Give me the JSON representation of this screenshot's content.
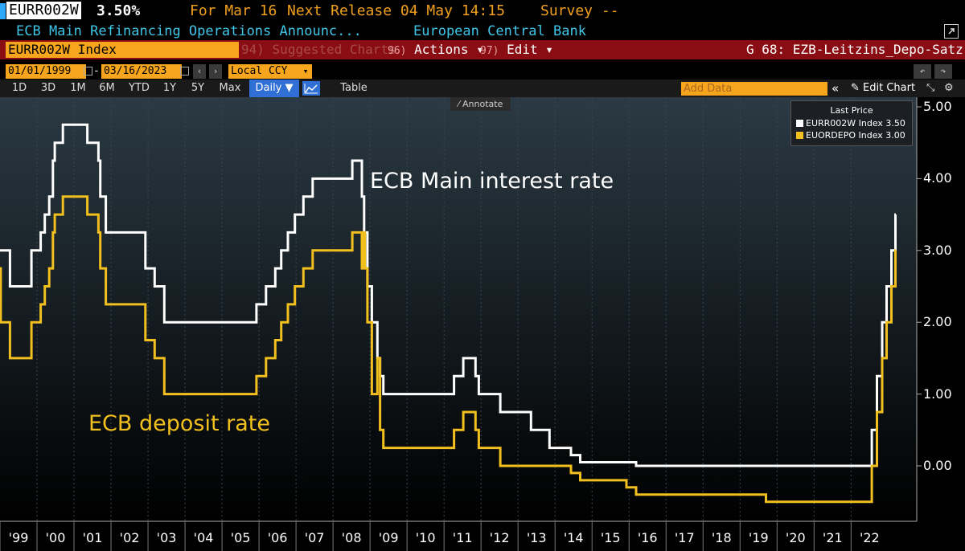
{
  "header": {
    "ticker": "EURR002W",
    "last_value": "3.50%",
    "for_label": "For Mar 16",
    "next_release": "Next Release 04 May 14:15",
    "survey": "Survey --",
    "description": "ECB Main Refinancing Operations Announc...",
    "source": "European Central Bank"
  },
  "toolbar": {
    "security": "EURR002W Index",
    "suggested": {
      "num": "94)",
      "label": "Suggested Charts"
    },
    "actions": {
      "num": "96)",
      "label": "Actions ▾"
    },
    "edit": {
      "num": "97)",
      "label": "Edit ▾"
    },
    "page_title": "G 68: EZB-Leitzins_Depo-Satz"
  },
  "range": {
    "start": "01/01/1999",
    "dash": "-",
    "end": "03/16/2023",
    "currency": "Local CCY"
  },
  "tabs": [
    "1D",
    "3D",
    "1M",
    "6M",
    "YTD",
    "1Y",
    "5Y",
    "Max"
  ],
  "period": "Daily ▼",
  "table_label": "Table",
  "add_data_placeholder": "Add Data",
  "edit_chart": "Edit Chart",
  "annotate": "Annotate",
  "colors": {
    "main": "#ffffff",
    "deposit": "#f2c01e",
    "accent": "#f7a51d",
    "bar": "#8b0d14"
  },
  "chart_data": {
    "type": "line",
    "ylim": [
      -0.6,
      5.1
    ],
    "xlim": [
      1999.0,
      2023.21
    ],
    "yticks": [
      "5.00",
      "4.00",
      "3.00",
      "2.00",
      "1.00",
      "0.00"
    ],
    "xticks": [
      "'99",
      "'00",
      "'01",
      "'02",
      "'03",
      "'04",
      "'05",
      "'06",
      "'07",
      "'08",
      "'09",
      "'10",
      "'11",
      "'12",
      "'13",
      "'14",
      "'15",
      "'16",
      "'17",
      "'18",
      "'19",
      "'20",
      "'21",
      "'22"
    ],
    "legend_title": "Last Price",
    "annotations": [
      "ECB Main interest rate",
      "ECB deposit rate"
    ],
    "series": [
      {
        "name": "EURR002W Index 3.50",
        "color": "#ffffff",
        "points": [
          [
            1999.0,
            3.0
          ],
          [
            1999.27,
            2.5
          ],
          [
            1999.85,
            3.0
          ],
          [
            2000.1,
            3.25
          ],
          [
            2000.21,
            3.5
          ],
          [
            2000.33,
            3.75
          ],
          [
            2000.43,
            4.25
          ],
          [
            2000.48,
            4.5
          ],
          [
            2000.7,
            4.75
          ],
          [
            2001.36,
            4.5
          ],
          [
            2001.66,
            4.25
          ],
          [
            2001.71,
            3.75
          ],
          [
            2001.86,
            3.25
          ],
          [
            2002.93,
            2.75
          ],
          [
            2003.18,
            2.5
          ],
          [
            2003.44,
            2.0
          ],
          [
            2005.93,
            2.25
          ],
          [
            2006.19,
            2.5
          ],
          [
            2006.44,
            2.75
          ],
          [
            2006.6,
            3.0
          ],
          [
            2006.78,
            3.25
          ],
          [
            2006.97,
            3.5
          ],
          [
            2007.2,
            3.75
          ],
          [
            2007.45,
            4.0
          ],
          [
            2008.52,
            4.25
          ],
          [
            2008.78,
            3.75
          ],
          [
            2008.84,
            3.25
          ],
          [
            2008.93,
            2.5
          ],
          [
            2009.05,
            2.0
          ],
          [
            2009.2,
            1.5
          ],
          [
            2009.27,
            1.25
          ],
          [
            2009.36,
            1.0
          ],
          [
            2011.27,
            1.25
          ],
          [
            2011.52,
            1.5
          ],
          [
            2011.85,
            1.25
          ],
          [
            2011.94,
            1.0
          ],
          [
            2012.52,
            0.75
          ],
          [
            2013.35,
            0.5
          ],
          [
            2013.85,
            0.25
          ],
          [
            2014.43,
            0.15
          ],
          [
            2014.68,
            0.05
          ],
          [
            2016.19,
            0.0
          ],
          [
            2022.56,
            0.5
          ],
          [
            2022.7,
            1.25
          ],
          [
            2022.84,
            2.0
          ],
          [
            2022.96,
            2.5
          ],
          [
            2023.09,
            3.0
          ],
          [
            2023.2,
            3.5
          ],
          [
            2023.21,
            3.5
          ]
        ]
      },
      {
        "name": "EUORDEPO Index 3.00",
        "color": "#f2c01e",
        "points": [
          [
            1999.0,
            2.75
          ],
          [
            1999.02,
            2.0
          ],
          [
            1999.27,
            1.5
          ],
          [
            1999.85,
            2.0
          ],
          [
            2000.1,
            2.25
          ],
          [
            2000.21,
            2.5
          ],
          [
            2000.33,
            2.75
          ],
          [
            2000.43,
            3.25
          ],
          [
            2000.48,
            3.5
          ],
          [
            2000.7,
            3.75
          ],
          [
            2001.36,
            3.5
          ],
          [
            2001.66,
            3.25
          ],
          [
            2001.71,
            2.75
          ],
          [
            2001.86,
            2.25
          ],
          [
            2002.93,
            1.75
          ],
          [
            2003.18,
            1.5
          ],
          [
            2003.44,
            1.0
          ],
          [
            2005.93,
            1.25
          ],
          [
            2006.19,
            1.5
          ],
          [
            2006.44,
            1.75
          ],
          [
            2006.6,
            2.0
          ],
          [
            2006.78,
            2.25
          ],
          [
            2006.97,
            2.5
          ],
          [
            2007.2,
            2.75
          ],
          [
            2007.45,
            3.0
          ],
          [
            2008.52,
            3.25
          ],
          [
            2008.78,
            2.75
          ],
          [
            2008.84,
            3.25
          ],
          [
            2008.86,
            2.75
          ],
          [
            2008.93,
            2.0
          ],
          [
            2009.05,
            1.0
          ],
          [
            2009.2,
            1.5
          ],
          [
            2009.27,
            0.5
          ],
          [
            2009.36,
            0.25
          ],
          [
            2011.27,
            0.5
          ],
          [
            2011.52,
            0.75
          ],
          [
            2011.85,
            0.5
          ],
          [
            2011.94,
            0.25
          ],
          [
            2012.52,
            0.0
          ],
          [
            2014.43,
            -0.1
          ],
          [
            2014.68,
            -0.2
          ],
          [
            2015.93,
            -0.3
          ],
          [
            2016.19,
            -0.4
          ],
          [
            2019.7,
            -0.5
          ],
          [
            2022.56,
            0.0
          ],
          [
            2022.7,
            0.75
          ],
          [
            2022.84,
            1.5
          ],
          [
            2022.96,
            2.0
          ],
          [
            2023.09,
            2.5
          ],
          [
            2023.2,
            3.0
          ],
          [
            2023.21,
            3.0
          ]
        ]
      }
    ]
  }
}
